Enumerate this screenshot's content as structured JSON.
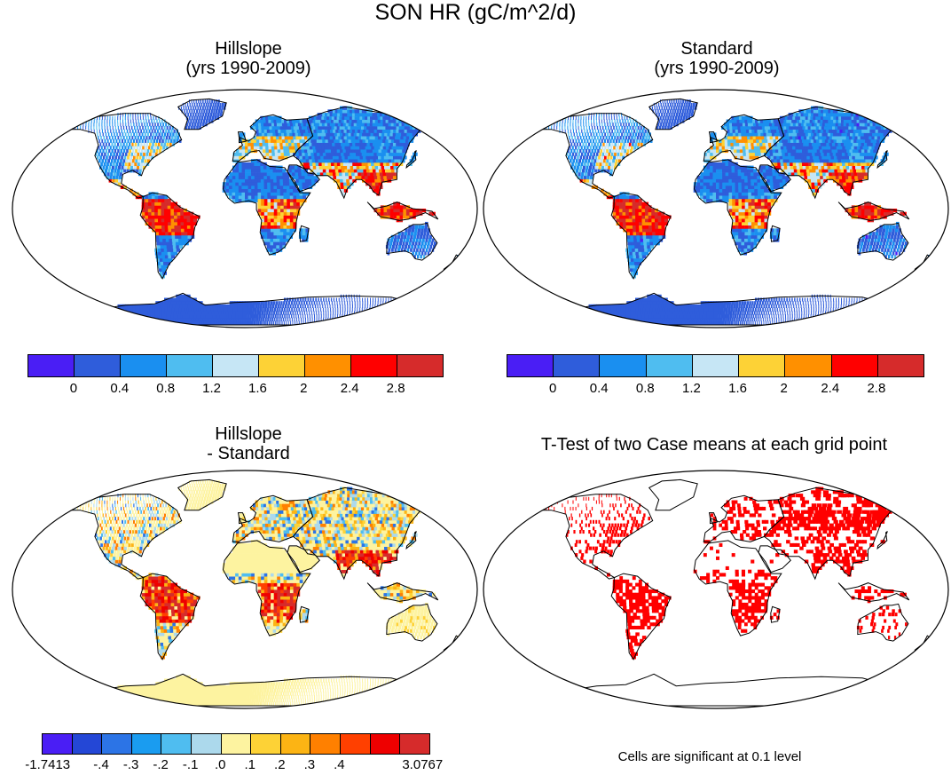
{
  "figure_title": "SON HR (gC/m^2/d)",
  "panels": [
    {
      "title": [
        "Hillslope",
        "(yrs 1990-2009)"
      ],
      "style": "abs"
    },
    {
      "title": [
        "Standard",
        "(yrs 1990-2009)"
      ],
      "style": "abs"
    },
    {
      "title": [
        "Hillslope",
        "- Standard"
      ],
      "style": "diff"
    },
    {
      "title": [
        "T-Test of two Case means at each grid point"
      ],
      "style": "ttest"
    }
  ],
  "colorbars": {
    "abs": {
      "colors": [
        "#4a1ef5",
        "#2f5ddb",
        "#1a8ff0",
        "#4fbdf0",
        "#c6e6f5",
        "#fdd236",
        "#ff9000",
        "#ff0000",
        "#d62b2b"
      ],
      "labels": [
        "0",
        "0.4",
        "0.8",
        "1.2",
        "1.6",
        "2",
        "2.4",
        "2.8"
      ]
    },
    "diff": {
      "colors": [
        "#4a1ef5",
        "#2447d6",
        "#2c74e6",
        "#1a9cf0",
        "#4fbdf0",
        "#acd9ec",
        "#fdf3a0",
        "#fdd236",
        "#fcb414",
        "#ff8000",
        "#ff4000",
        "#ee0000",
        "#d62b2b"
      ],
      "labels": [
        "-1.7413",
        "-.4",
        "-.3",
        "-.2",
        "-.1",
        ".0",
        ".1",
        ".2",
        ".3",
        ".4",
        "3.0767"
      ]
    }
  },
  "significance_note": "Cells are significant at 0.1 level"
}
